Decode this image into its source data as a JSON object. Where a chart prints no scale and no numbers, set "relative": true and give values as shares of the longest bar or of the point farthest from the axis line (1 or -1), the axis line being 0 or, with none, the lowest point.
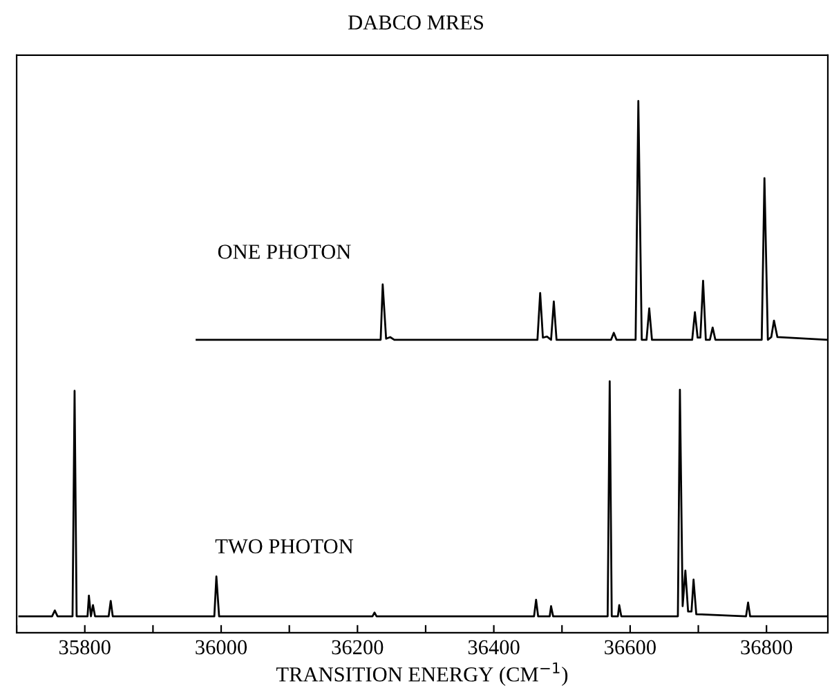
{
  "chart_data": {
    "type": "line",
    "title": "DABCO MRES",
    "xlabel": "TRANSITION ENERGY (CM$^{−1}$)",
    "relative": true,
    "xlim": [
      35700,
      36890
    ],
    "xticks": [
      {
        "value": 35700,
        "label": null
      },
      35800,
      {
        "value": 35900,
        "label": null
      },
      36000,
      {
        "value": 36100,
        "label": null
      },
      36200,
      {
        "value": 36300,
        "label": null
      },
      36400,
      {
        "value": 36500,
        "label": null
      },
      36600,
      {
        "value": 36700,
        "label": null
      },
      36800
    ],
    "grid": false,
    "legend": false,
    "marker": "none",
    "line_style": "solid",
    "series": [
      {
        "name": "ONE PHOTON",
        "color": "#000000",
        "x": [
          35964,
          36234,
          36237,
          36242,
          36248,
          36254,
          36464,
          36468,
          36472,
          36478,
          36484,
          36488,
          36492,
          36572,
          36576,
          36580,
          36608,
          36612,
          36617,
          36624,
          36628,
          36632,
          36691,
          36695,
          36699,
          36703,
          36707,
          36711,
          36717,
          36721,
          36725,
          36793,
          36797,
          36802,
          36807,
          36811,
          36816,
          36888
        ],
        "values": [
          0.551,
          0.551,
          0.655,
          0.553,
          0.556,
          0.551,
          0.551,
          0.639,
          0.555,
          0.557,
          0.551,
          0.623,
          0.551,
          0.551,
          0.564,
          0.551,
          0.551,
          1.0,
          0.551,
          0.551,
          0.61,
          0.551,
          0.551,
          0.603,
          0.555,
          0.555,
          0.662,
          0.551,
          0.551,
          0.574,
          0.551,
          0.551,
          0.855,
          0.551,
          0.556,
          0.587,
          0.556,
          0.551
        ]
      },
      {
        "name": "TWO PHOTON",
        "color": "#000000",
        "x": [
          35704,
          35752,
          35756,
          35760,
          35782,
          35785,
          35788,
          35804,
          35806,
          35809,
          35812,
          35815,
          35835,
          35838,
          35841,
          35990,
          35993,
          35997,
          36222,
          36225,
          36228,
          36459,
          36462,
          36465,
          36482,
          36484,
          36487,
          36567,
          36570,
          36573,
          36582,
          36584,
          36587,
          36670,
          36673,
          36677,
          36681,
          36685,
          36690,
          36693,
          36697,
          36770,
          36773,
          36776,
          36888
        ],
        "values": [
          0.031,
          0.031,
          0.042,
          0.031,
          0.031,
          0.455,
          0.031,
          0.031,
          0.07,
          0.031,
          0.052,
          0.031,
          0.031,
          0.06,
          0.031,
          0.031,
          0.106,
          0.031,
          0.031,
          0.038,
          0.031,
          0.031,
          0.062,
          0.031,
          0.031,
          0.05,
          0.031,
          0.031,
          0.473,
          0.031,
          0.031,
          0.052,
          0.031,
          0.031,
          0.457,
          0.05,
          0.117,
          0.04,
          0.04,
          0.1,
          0.035,
          0.031,
          0.057,
          0.031,
          0.031
        ]
      }
    ]
  }
}
